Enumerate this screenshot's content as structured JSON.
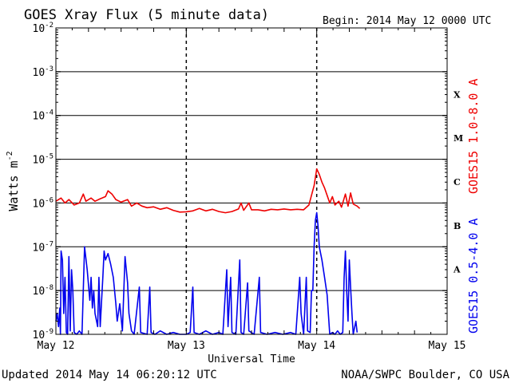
{
  "chart_data": {
    "type": "line",
    "title": "GOES Xray Flux (5 minute data)",
    "begin_label": "Begin:  2014 May 12 0000 UTC",
    "xlabel": "Universal Time",
    "ylabel_base": "Watts m",
    "ylabel_exp": "-2",
    "x_unit": "days since 2014 May 12 0000 UTC",
    "x_range": [
      0,
      3
    ],
    "y_scale": "log",
    "ylim": [
      1e-09,
      0.01
    ],
    "x_tick_labels": [
      "May 12",
      "May 13",
      "May 14",
      "May 15"
    ],
    "y_tick_labels": [
      {
        "exp": "-2"
      },
      {
        "exp": "-3"
      },
      {
        "exp": "-4"
      },
      {
        "exp": "-5"
      },
      {
        "exp": "-6"
      },
      {
        "exp": "-7"
      },
      {
        "exp": "-8"
      },
      {
        "exp": "-9"
      }
    ],
    "y_tick_base": "10",
    "flare_classes": [
      "X",
      "M",
      "C",
      "B",
      "A"
    ],
    "grid": true,
    "series": [
      {
        "name": "GOES15 1.0-8.0 A",
        "color": "#ee0000",
        "points": [
          [
            0.0,
            1.1e-06
          ],
          [
            0.04,
            1.3e-06
          ],
          [
            0.07,
            1e-06
          ],
          [
            0.1,
            1.2e-06
          ],
          [
            0.14,
            9e-07
          ],
          [
            0.18,
            1e-06
          ],
          [
            0.21,
            1.6e-06
          ],
          [
            0.23,
            1.1e-06
          ],
          [
            0.27,
            1.3e-06
          ],
          [
            0.3,
            1.1e-06
          ],
          [
            0.34,
            1.25e-06
          ],
          [
            0.38,
            1.4e-06
          ],
          [
            0.4,
            1.9e-06
          ],
          [
            0.43,
            1.6e-06
          ],
          [
            0.46,
            1.2e-06
          ],
          [
            0.5,
            1.05e-06
          ],
          [
            0.55,
            1.2e-06
          ],
          [
            0.58,
            8.5e-07
          ],
          [
            0.62,
            1e-06
          ],
          [
            0.66,
            8.5e-07
          ],
          [
            0.7,
            7.8e-07
          ],
          [
            0.75,
            8.2e-07
          ],
          [
            0.8,
            7.2e-07
          ],
          [
            0.85,
            7.8e-07
          ],
          [
            0.9,
            6.8e-07
          ],
          [
            0.95,
            6.2e-07
          ],
          [
            1.0,
            6.3e-07
          ],
          [
            1.05,
            6.6e-07
          ],
          [
            1.1,
            7.5e-07
          ],
          [
            1.15,
            6.6e-07
          ],
          [
            1.2,
            7.2e-07
          ],
          [
            1.25,
            6.4e-07
          ],
          [
            1.3,
            6e-07
          ],
          [
            1.35,
            6.4e-07
          ],
          [
            1.4,
            7.3e-07
          ],
          [
            1.42,
            1e-06
          ],
          [
            1.44,
            6.8e-07
          ],
          [
            1.48,
            1e-06
          ],
          [
            1.5,
            7e-07
          ],
          [
            1.55,
            7e-07
          ],
          [
            1.6,
            6.6e-07
          ],
          [
            1.65,
            7.2e-07
          ],
          [
            1.7,
            7e-07
          ],
          [
            1.75,
            7.3e-07
          ],
          [
            1.8,
            7e-07
          ],
          [
            1.85,
            7.2e-07
          ],
          [
            1.9,
            7e-07
          ],
          [
            1.94,
            9e-07
          ],
          [
            1.98,
            2.5e-06
          ],
          [
            2.0,
            6e-06
          ],
          [
            2.02,
            4.5e-06
          ],
          [
            2.04,
            3e-06
          ],
          [
            2.06,
            2.2e-06
          ],
          [
            2.08,
            1.5e-06
          ],
          [
            2.1,
            1e-06
          ],
          [
            2.12,
            1.4e-06
          ],
          [
            2.14,
            9e-07
          ],
          [
            2.17,
            1.1e-06
          ],
          [
            2.19,
            8e-07
          ],
          [
            2.22,
            1.6e-06
          ],
          [
            2.24,
            8.5e-07
          ],
          [
            2.26,
            1.7e-06
          ],
          [
            2.28,
            9.5e-07
          ],
          [
            2.31,
            8.5e-07
          ],
          [
            2.33,
            7.5e-07
          ]
        ]
      },
      {
        "name": "GOES15 0.5-4.0 A",
        "color": "#0000ee",
        "points": [
          [
            0.0,
            2e-09
          ],
          [
            0.01,
            3e-09
          ],
          [
            0.02,
            1.5e-09
          ],
          [
            0.03,
            4e-09
          ],
          [
            0.035,
            1e-09
          ],
          [
            0.04,
            8e-08
          ],
          [
            0.05,
            5e-08
          ],
          [
            0.06,
            3e-09
          ],
          [
            0.07,
            2e-08
          ],
          [
            0.08,
            1.1e-09
          ],
          [
            0.09,
            1e-09
          ],
          [
            0.1,
            6e-08
          ],
          [
            0.11,
            1.2e-09
          ],
          [
            0.12,
            3e-08
          ],
          [
            0.13,
            1e-08
          ],
          [
            0.14,
            1.1e-09
          ],
          [
            0.16,
            1e-09
          ],
          [
            0.18,
            1.2e-09
          ],
          [
            0.2,
            1e-09
          ],
          [
            0.22,
            1e-07
          ],
          [
            0.24,
            3e-08
          ],
          [
            0.26,
            6e-09
          ],
          [
            0.27,
            2e-08
          ],
          [
            0.28,
            4e-09
          ],
          [
            0.29,
            1e-08
          ],
          [
            0.3,
            3e-09
          ],
          [
            0.32,
            1.5e-09
          ],
          [
            0.33,
            2e-08
          ],
          [
            0.34,
            1.5e-09
          ],
          [
            0.36,
            2e-08
          ],
          [
            0.37,
            8e-08
          ],
          [
            0.38,
            5e-08
          ],
          [
            0.4,
            7e-08
          ],
          [
            0.42,
            4e-08
          ],
          [
            0.44,
            2e-08
          ],
          [
            0.46,
            5e-09
          ],
          [
            0.47,
            2e-09
          ],
          [
            0.49,
            5e-09
          ],
          [
            0.51,
            1.2e-09
          ],
          [
            0.53,
            6e-08
          ],
          [
            0.55,
            1.5e-08
          ],
          [
            0.56,
            3e-09
          ],
          [
            0.58,
            1.2e-09
          ],
          [
            0.6,
            1e-09
          ],
          [
            0.64,
            1.2e-08
          ],
          [
            0.65,
            1.1e-09
          ],
          [
            0.7,
            1e-09
          ],
          [
            0.72,
            1.2e-08
          ],
          [
            0.73,
            1.1e-09
          ],
          [
            0.76,
            1e-09
          ],
          [
            0.8,
            1.2e-09
          ],
          [
            0.85,
            1e-09
          ],
          [
            0.9,
            1.1e-09
          ],
          [
            0.95,
            1e-09
          ],
          [
            1.0,
            1e-09
          ],
          [
            1.03,
            1.1e-09
          ],
          [
            1.05,
            1.2e-08
          ],
          [
            1.06,
            1.1e-09
          ],
          [
            1.1,
            1e-09
          ],
          [
            1.15,
            1.2e-09
          ],
          [
            1.2,
            1e-09
          ],
          [
            1.25,
            1.1e-09
          ],
          [
            1.28,
            1e-09
          ],
          [
            1.31,
            3e-08
          ],
          [
            1.32,
            1.5e-09
          ],
          [
            1.34,
            2e-08
          ],
          [
            1.35,
            1.1e-09
          ],
          [
            1.38,
            1e-09
          ],
          [
            1.41,
            5e-08
          ],
          [
            1.42,
            1.1e-09
          ],
          [
            1.44,
            1e-09
          ],
          [
            1.47,
            1.5e-08
          ],
          [
            1.48,
            1.2e-09
          ],
          [
            1.52,
            1e-09
          ],
          [
            1.56,
            2e-08
          ],
          [
            1.57,
            1.1e-09
          ],
          [
            1.62,
            1e-09
          ],
          [
            1.68,
            1.1e-09
          ],
          [
            1.74,
            1e-09
          ],
          [
            1.8,
            1.1e-09
          ],
          [
            1.84,
            1e-09
          ],
          [
            1.87,
            2e-08
          ],
          [
            1.88,
            3e-09
          ],
          [
            1.9,
            1e-09
          ],
          [
            1.92,
            2e-08
          ],
          [
            1.93,
            1.2e-09
          ],
          [
            1.95,
            1.1e-09
          ],
          [
            1.96,
            1e-08
          ],
          [
            1.97,
            1e-08
          ],
          [
            1.98,
            1e-07
          ],
          [
            1.99,
            4e-07
          ],
          [
            2.0,
            6e-07
          ],
          [
            2.01,
            3e-07
          ],
          [
            2.02,
            1e-07
          ],
          [
            2.04,
            5e-08
          ],
          [
            2.06,
            2e-08
          ],
          [
            2.08,
            8e-09
          ],
          [
            2.1,
            1e-09
          ],
          [
            2.12,
            1.1e-09
          ],
          [
            2.14,
            1e-09
          ],
          [
            2.16,
            1.2e-09
          ],
          [
            2.18,
            1e-09
          ],
          [
            2.2,
            1.1e-09
          ],
          [
            2.21,
            2e-08
          ],
          [
            2.22,
            8e-08
          ],
          [
            2.23,
            1e-08
          ],
          [
            2.24,
            2e-09
          ],
          [
            2.25,
            5e-08
          ],
          [
            2.26,
            1.2e-08
          ],
          [
            2.27,
            3e-09
          ],
          [
            2.28,
            1e-09
          ],
          [
            2.3,
            2e-09
          ],
          [
            2.31,
            1.1e-09
          ]
        ]
      }
    ]
  },
  "footer": {
    "updated": "Updated 2014 May 14 06:20:12 UTC",
    "source": "NOAA/SWPC Boulder, CO USA"
  }
}
